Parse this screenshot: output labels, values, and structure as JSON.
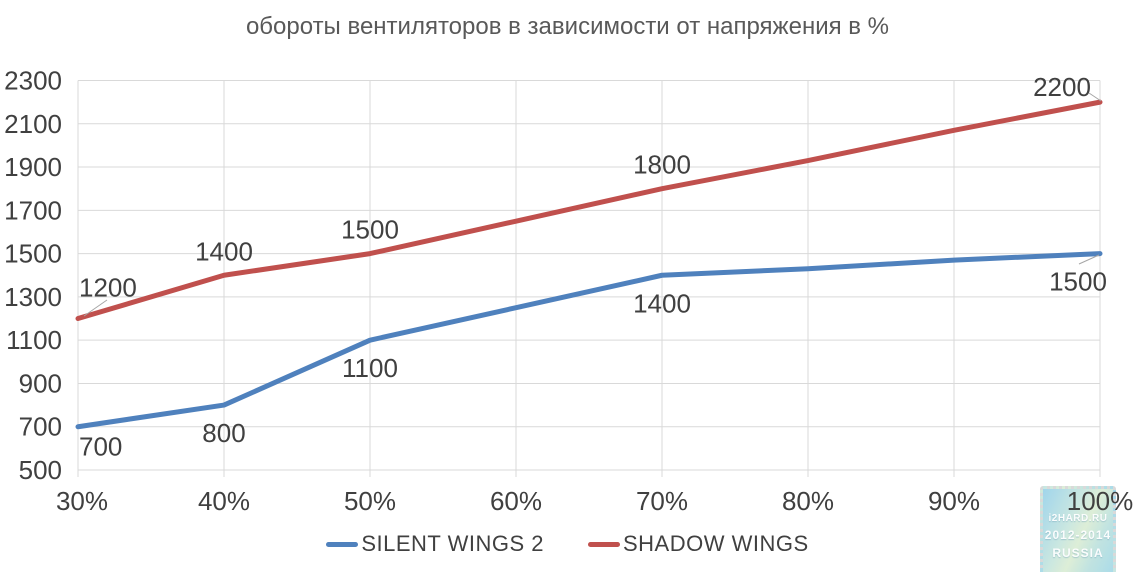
{
  "page": {
    "background": "#ffffff"
  },
  "chart_data": {
    "type": "line",
    "title": "обороты вентиляторов в зависимости от напряжения в %",
    "xlabel": "",
    "ylabel": "",
    "categories": [
      "30%",
      "40%",
      "50%",
      "60%",
      "70%",
      "80%",
      "90%",
      "100%"
    ],
    "series": [
      {
        "name": "SILENT WINGS 2",
        "color": "#4F81BD",
        "values": [
          700,
          800,
          1100,
          1250,
          1400,
          1430,
          1470,
          1500
        ],
        "point_labels": [
          "700",
          "800",
          "1100",
          "",
          "1400",
          "",
          "",
          "1500"
        ],
        "labels_position": "below"
      },
      {
        "name": "SHADOW WINGS",
        "color": "#C0504D",
        "values": [
          1200,
          1400,
          1500,
          1650,
          1800,
          1930,
          2070,
          2200
        ],
        "point_labels": [
          "1200",
          "1400",
          "1500",
          "",
          "1800",
          "",
          "",
          "2200"
        ],
        "labels_position": "above"
      }
    ],
    "ylim": [
      500,
      2300
    ],
    "yticks": [
      500,
      700,
      900,
      1100,
      1300,
      1500,
      1700,
      1900,
      2100,
      2300
    ],
    "grid": true,
    "legend_position": "bottom",
    "colors": {
      "axis_text": "#404040",
      "data_label_text": "#404040",
      "title_text": "#595959",
      "gridline": "#D9D9D9",
      "leader_line": "#A6A6A6"
    }
  },
  "watermark": {
    "line1": "i2HARD.RU",
    "line2": "2012-2014",
    "line3": "RUSSIA"
  }
}
